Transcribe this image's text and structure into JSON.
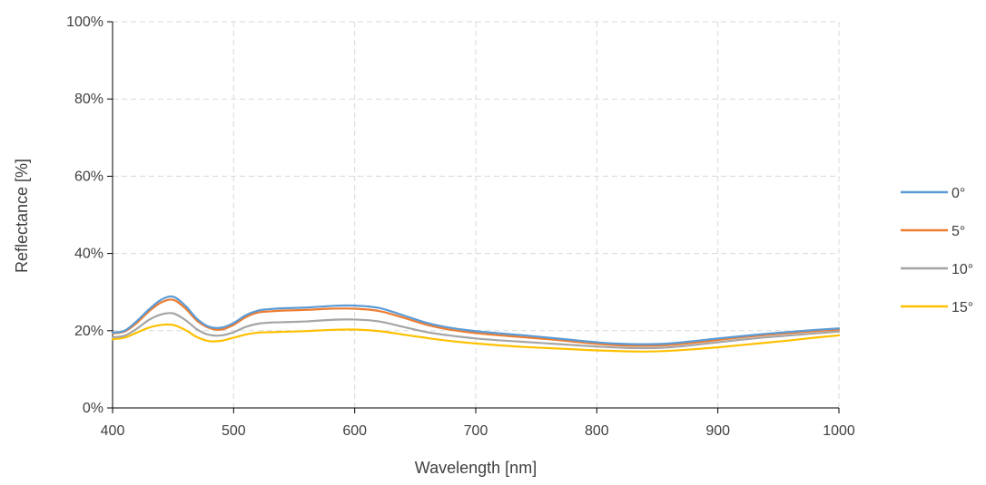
{
  "chart_data": {
    "type": "line",
    "xlabel": "Wavelength [nm]",
    "ylabel": "Reflectance [%]",
    "xlim": [
      400,
      1000
    ],
    "ylim": [
      0,
      100
    ],
    "x_ticks": [
      400,
      500,
      600,
      700,
      800,
      900,
      1000
    ],
    "x_tick_labels": [
      "400",
      "500",
      "600",
      "700",
      "800",
      "900",
      "1000"
    ],
    "y_ticks": [
      0,
      20,
      40,
      60,
      80,
      100
    ],
    "y_tick_labels": [
      "0%",
      "20%",
      "40%",
      "60%",
      "80%",
      "100%"
    ],
    "grid": true,
    "legend_position": "right",
    "x": [
      400,
      410,
      420,
      430,
      440,
      450,
      460,
      470,
      480,
      490,
      500,
      510,
      520,
      530,
      540,
      560,
      580,
      600,
      620,
      640,
      660,
      680,
      700,
      720,
      740,
      760,
      780,
      800,
      820,
      840,
      860,
      880,
      900,
      920,
      940,
      960,
      980,
      1000
    ],
    "series": [
      {
        "name": "0°",
        "color": "#5b9bd5",
        "values": [
          19.5,
          20.0,
          22.5,
          25.5,
          28.0,
          28.8,
          26.5,
          23.0,
          21.0,
          20.8,
          22.0,
          24.0,
          25.2,
          25.6,
          25.8,
          26.0,
          26.4,
          26.5,
          25.9,
          24.0,
          22.0,
          20.7,
          19.9,
          19.3,
          18.8,
          18.2,
          17.6,
          17.0,
          16.6,
          16.5,
          16.7,
          17.3,
          18.0,
          18.6,
          19.2,
          19.7,
          20.2,
          20.6
        ]
      },
      {
        "name": "5°",
        "color": "#ed7d31",
        "values": [
          19.3,
          19.8,
          22.0,
          25.0,
          27.3,
          28.0,
          25.8,
          22.5,
          20.7,
          20.3,
          21.5,
          23.5,
          24.7,
          25.0,
          25.2,
          25.4,
          25.7,
          25.7,
          25.1,
          23.4,
          21.5,
          20.2,
          19.4,
          18.8,
          18.3,
          17.8,
          17.2,
          16.6,
          16.2,
          16.1,
          16.3,
          16.9,
          17.6,
          18.3,
          18.9,
          19.4,
          19.9,
          20.3
        ]
      },
      {
        "name": "10°",
        "color": "#a5a5a5",
        "values": [
          18.3,
          18.7,
          20.5,
          22.8,
          24.2,
          24.5,
          22.8,
          20.3,
          18.9,
          18.8,
          19.6,
          21.0,
          21.8,
          22.1,
          22.2,
          22.4,
          22.8,
          22.9,
          22.4,
          21.0,
          19.6,
          18.7,
          18.0,
          17.5,
          17.1,
          16.7,
          16.3,
          15.9,
          15.6,
          15.5,
          15.7,
          16.3,
          17.0,
          17.7,
          18.3,
          18.8,
          19.3,
          19.8
        ]
      },
      {
        "name": "15°",
        "color": "#ffc000",
        "values": [
          17.8,
          18.2,
          19.5,
          20.8,
          21.5,
          21.5,
          20.2,
          18.3,
          17.3,
          17.4,
          18.2,
          19.0,
          19.5,
          19.6,
          19.7,
          19.9,
          20.2,
          20.3,
          19.9,
          19.0,
          18.1,
          17.3,
          16.7,
          16.2,
          15.8,
          15.5,
          15.2,
          14.9,
          14.7,
          14.6,
          14.8,
          15.2,
          15.7,
          16.3,
          16.9,
          17.5,
          18.2,
          18.8
        ]
      }
    ]
  }
}
